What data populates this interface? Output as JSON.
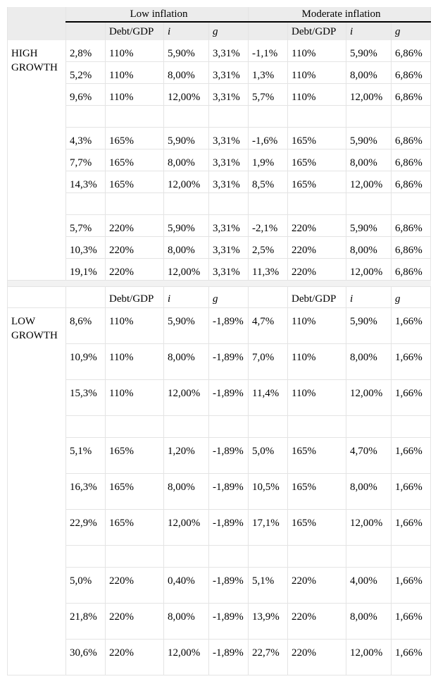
{
  "header": {
    "low_inflation": "Low inflation",
    "moderate_inflation": "Moderate inflation",
    "col_debt": "Debt/GDP",
    "col_i": "i",
    "col_g": "g"
  },
  "high_growth": {
    "label": "HIGH GROWTH",
    "rows": [
      [
        "2,8%",
        "110%",
        "5,90%",
        "3,31%",
        "-1,1%",
        "110%",
        "5,90%",
        "6,86%"
      ],
      [
        "5,2%",
        "110%",
        "8,00%",
        "3,31%",
        "1,3%",
        "110%",
        "8,00%",
        "6,86%"
      ],
      [
        "9,6%",
        "110%",
        "12,00%",
        "3,31%",
        "5,7%",
        "110%",
        "12,00%",
        "6,86%"
      ],
      [
        "4,3%",
        "165%",
        "5,90%",
        "3,31%",
        "-1,6%",
        "165%",
        "5,90%",
        "6,86%"
      ],
      [
        "7,7%",
        "165%",
        "8,00%",
        "3,31%",
        "1,9%",
        "165%",
        "8,00%",
        "6,86%"
      ],
      [
        "14,3%",
        "165%",
        "12,00%",
        "3,31%",
        "8,5%",
        "165%",
        "12,00%",
        "6,86%"
      ],
      [
        "5,7%",
        "220%",
        "5,90%",
        "3,31%",
        "-2,1%",
        "220%",
        "5,90%",
        "6,86%"
      ],
      [
        "10,3%",
        "220%",
        "8,00%",
        "3,31%",
        "2,5%",
        "220%",
        "8,00%",
        "6,86%"
      ],
      [
        "19,1%",
        "220%",
        "12,00%",
        "3,31%",
        "11,3%",
        "220%",
        "12,00%",
        "6,86%"
      ]
    ]
  },
  "low_growth": {
    "label": "LOW GROWTH",
    "rows": [
      [
        "8,6%",
        "110%",
        "5,90%",
        "-1,89%",
        "4,7%",
        "110%",
        "5,90%",
        "1,66%"
      ],
      [
        "10,9%",
        "110%",
        "8,00%",
        "-1,89%",
        "7,0%",
        "110%",
        "8,00%",
        "1,66%"
      ],
      [
        "15,3%",
        "110%",
        "12,00%",
        "-1,89%",
        "11,4%",
        "110%",
        "12,00%",
        "1,66%"
      ],
      [
        "5,1%",
        "165%",
        "1,20%",
        "-1,89%",
        "5,0%",
        "165%",
        "4,70%",
        "1,66%"
      ],
      [
        "16,3%",
        "165%",
        "8,00%",
        "-1,89%",
        "10,5%",
        "165%",
        "8,00%",
        "1,66%"
      ],
      [
        "22,9%",
        "165%",
        "12,00%",
        "-1,89%",
        "17,1%",
        "165%",
        "12,00%",
        "1,66%"
      ],
      [
        "5,0%",
        "220%",
        "0,40%",
        "-1,89%",
        "5,1%",
        "220%",
        "4,00%",
        "1,66%"
      ],
      [
        "21,8%",
        "220%",
        "8,00%",
        "-1,89%",
        "13,9%",
        "220%",
        "8,00%",
        "1,66%"
      ],
      [
        "30,6%",
        "220%",
        "12,00%",
        "-1,89%",
        "22,7%",
        "220%",
        "12,00%",
        "1,66%"
      ]
    ]
  }
}
